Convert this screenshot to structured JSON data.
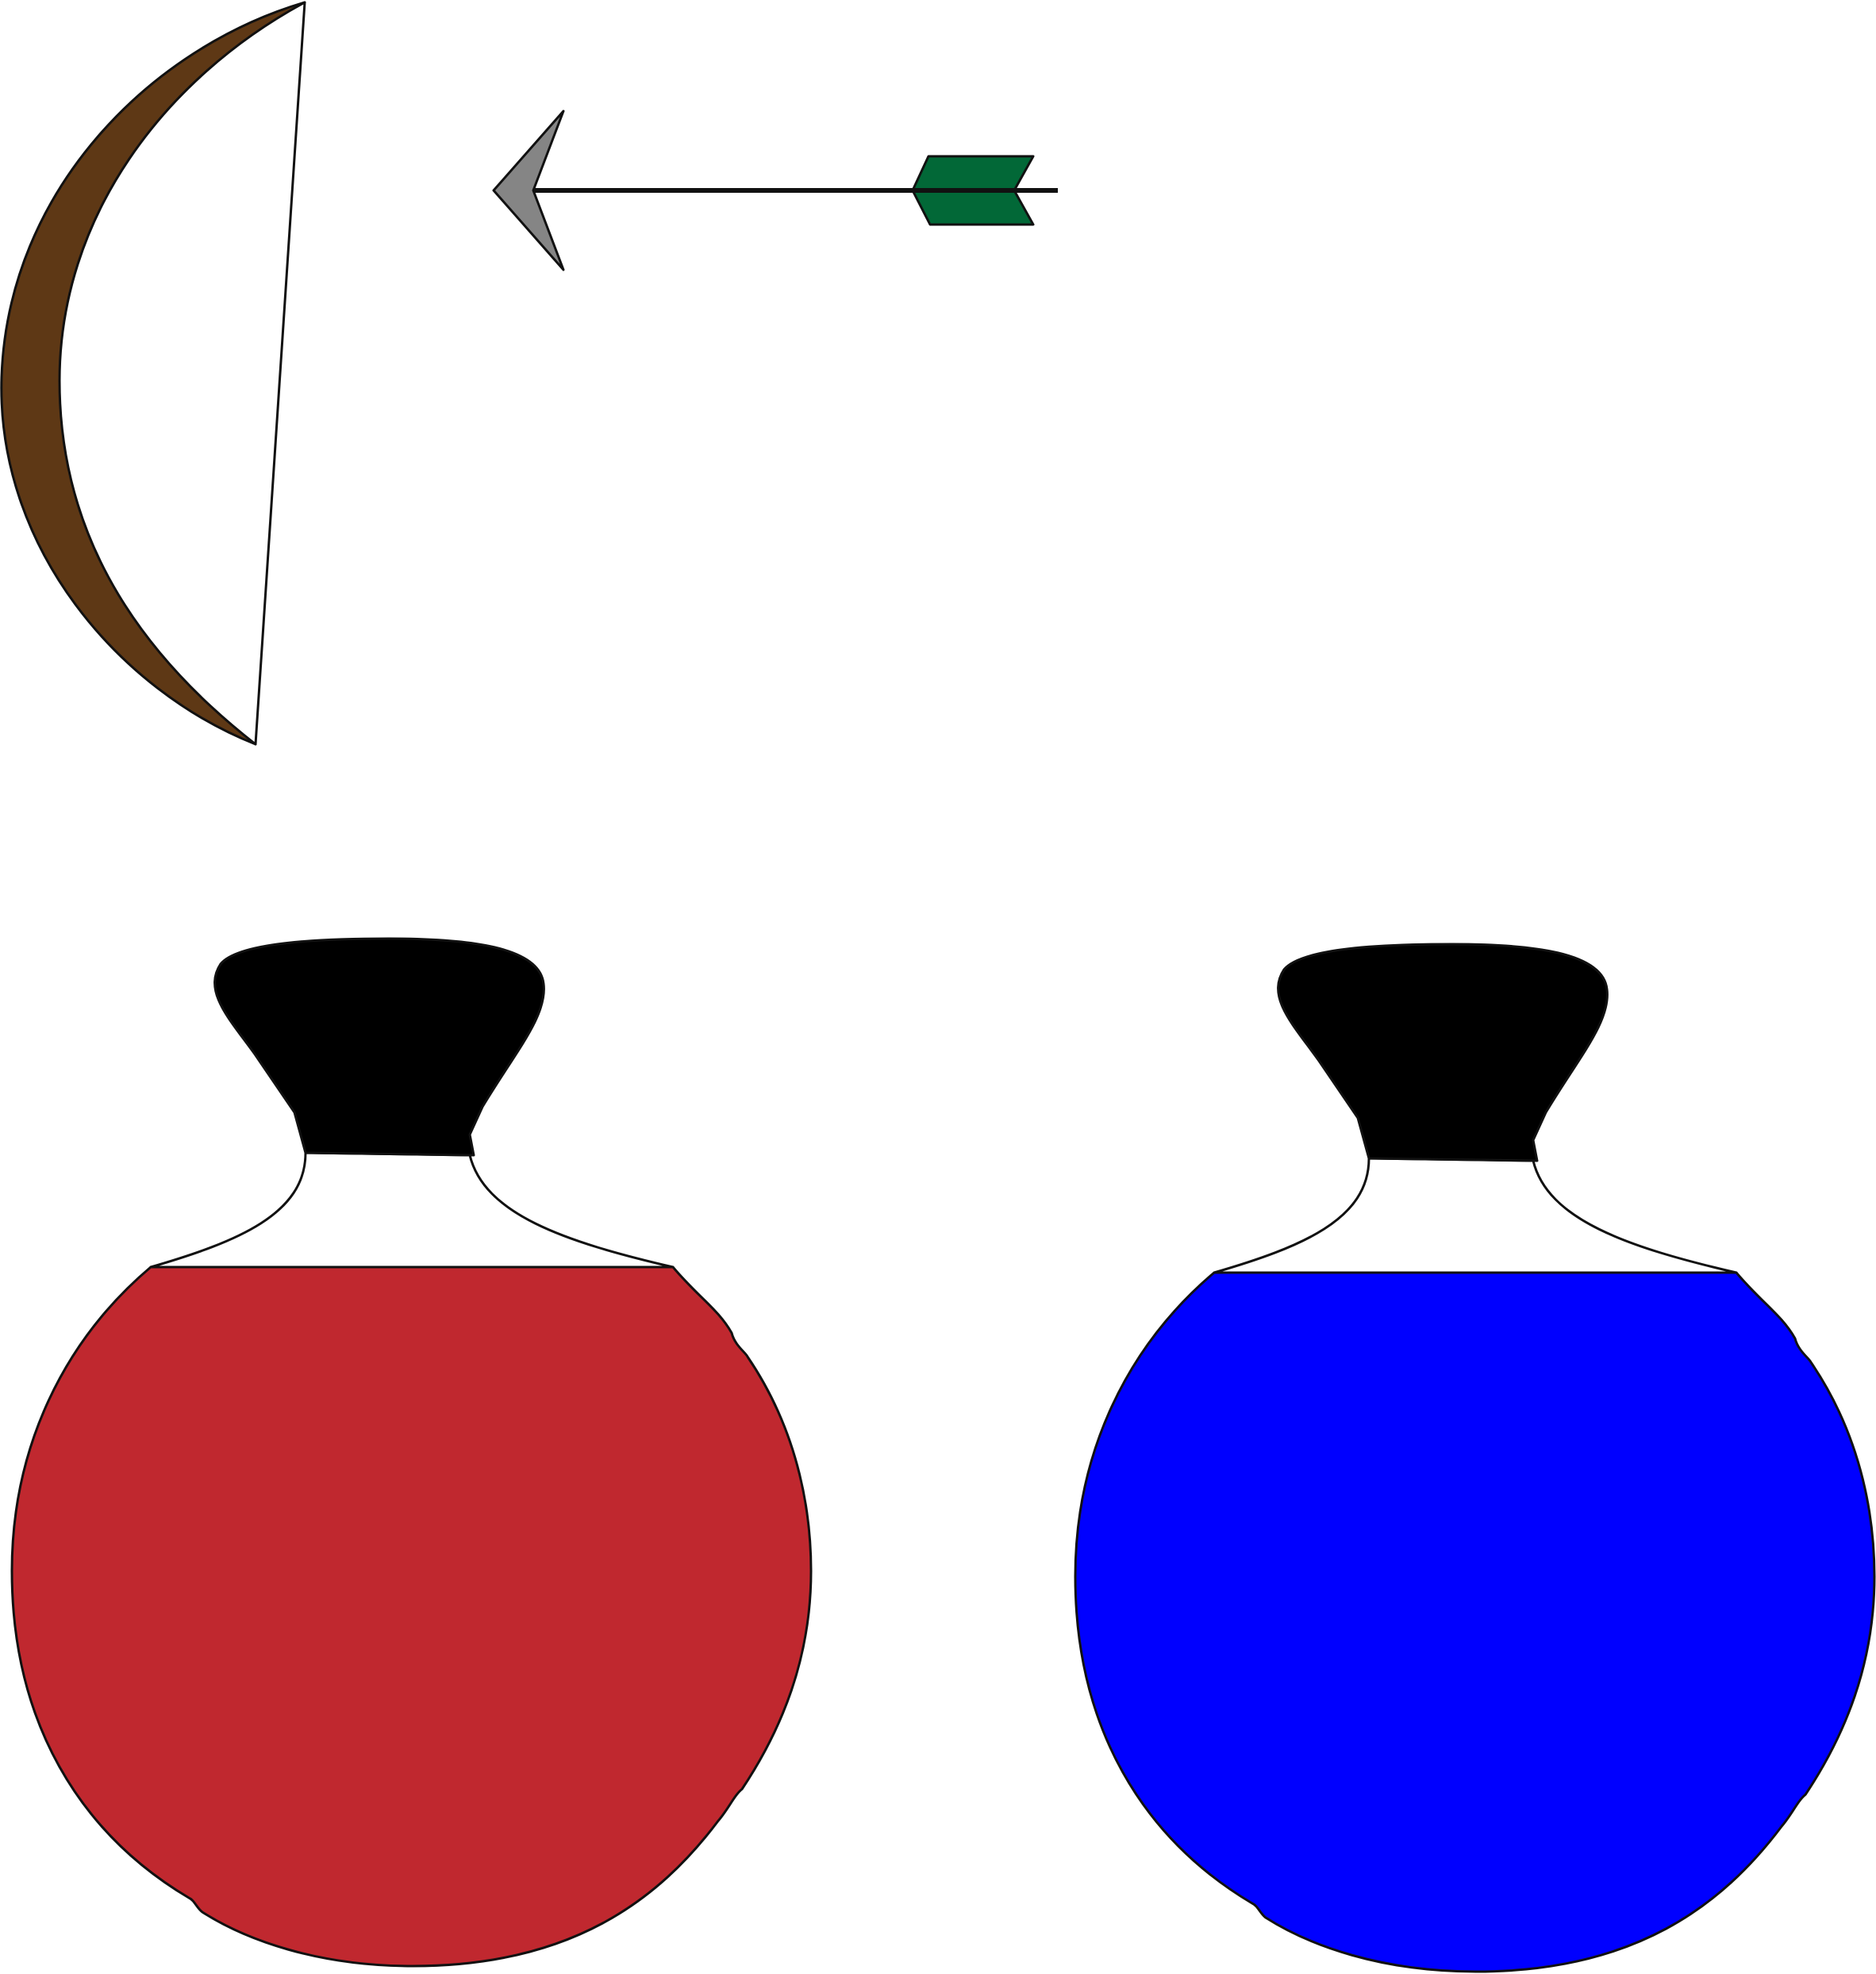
{
  "scene": {
    "background": "#ffffff",
    "items": {
      "bow": {
        "icon": "bow-icon",
        "limb_color": "#5e3815",
        "string_color": "#111111"
      },
      "arrow": {
        "icon": "arrow-icon",
        "shaft_color": "#111111",
        "head_color": "#858585",
        "fletching_color": "#026837"
      },
      "potions": [
        {
          "icon": "red-potion-icon",
          "liquid_color": "#c0282f",
          "stopper_color": "#000000"
        },
        {
          "icon": "blue-potion-icon",
          "liquid_color": "#0000ff",
          "stopper_color": "#000000"
        }
      ]
    }
  }
}
